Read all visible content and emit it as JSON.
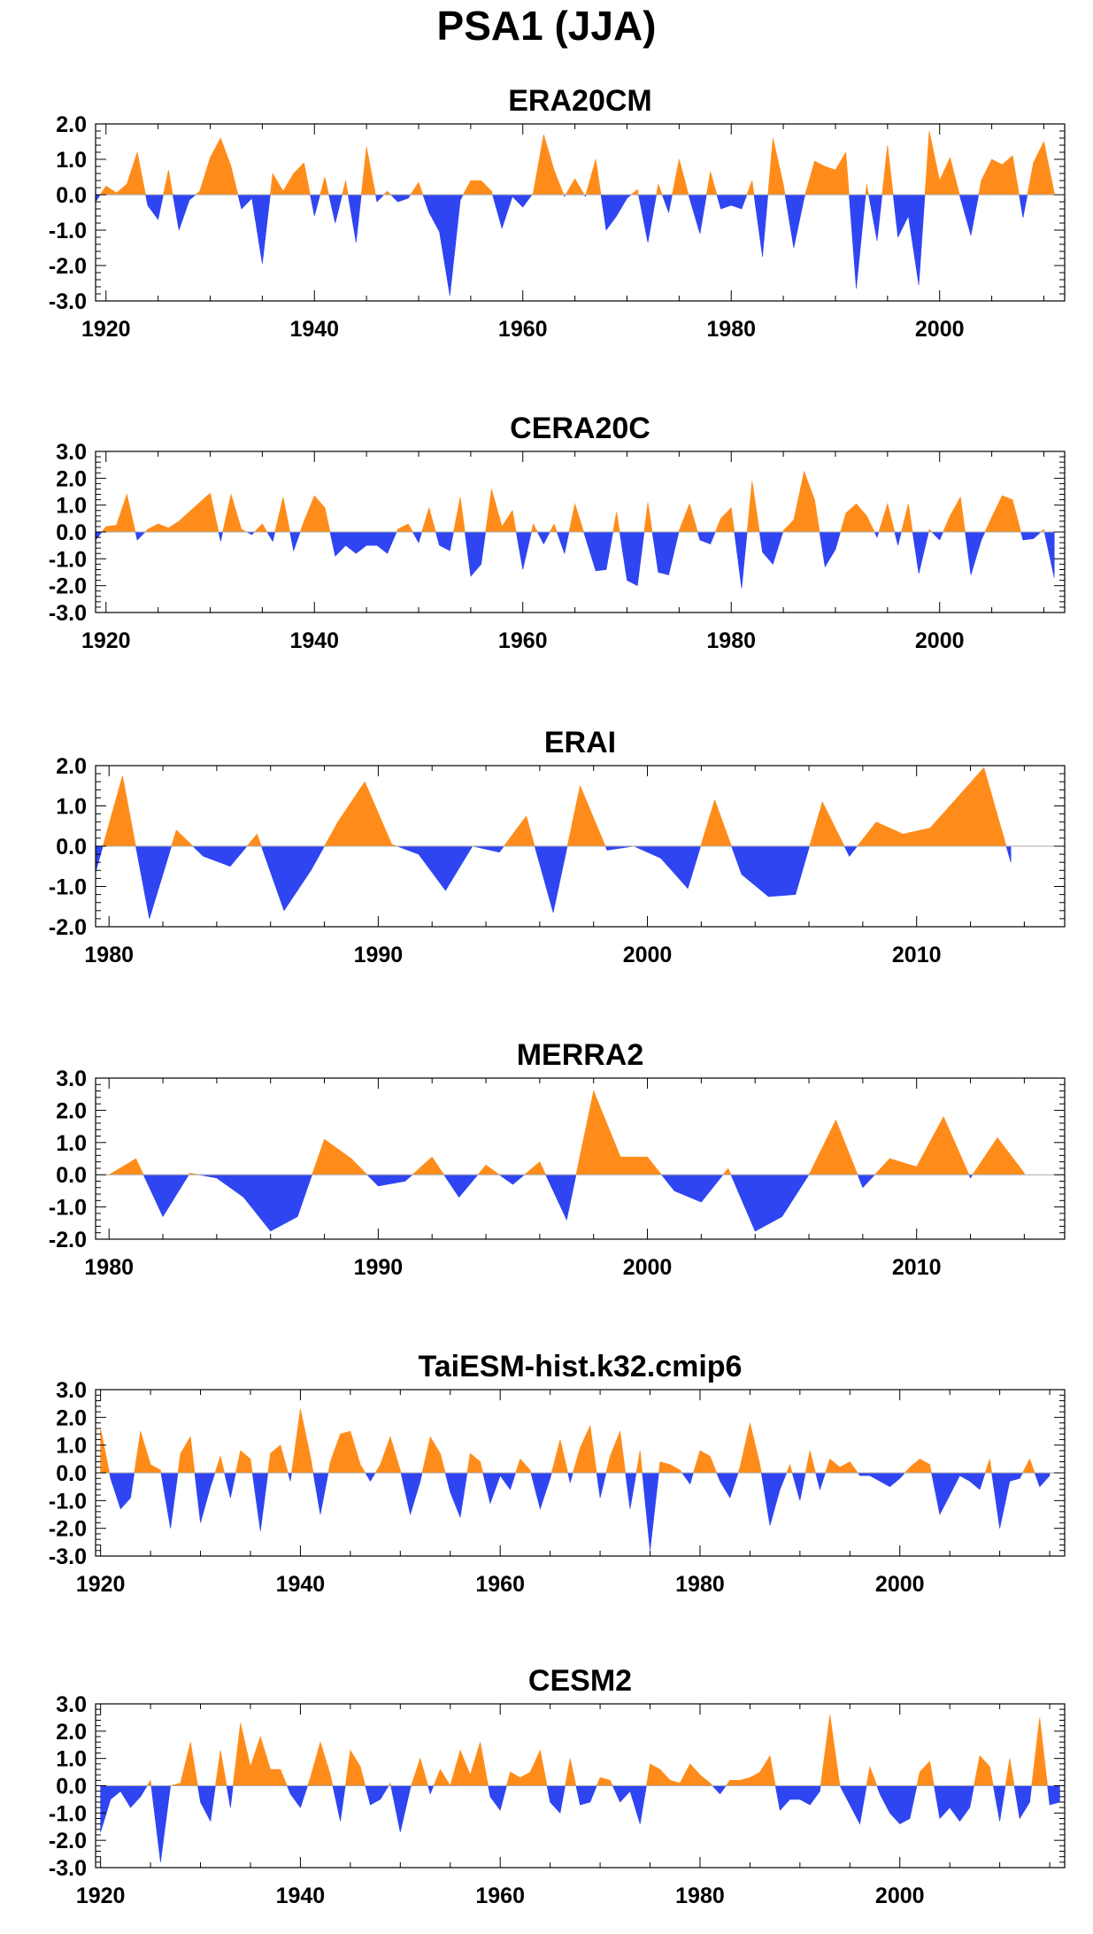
{
  "figure_title": "PSA1 (JJA)",
  "colors": {
    "positive": "#FF8C1A",
    "negative": "#2F45F2",
    "axis": "#000000",
    "zero_line": "#aaaaaa"
  },
  "chart_data": [
    {
      "type": "area",
      "title": "ERA20CM",
      "xlim": [
        1919,
        2012
      ],
      "ylim": [
        -3.0,
        2.0
      ],
      "xticks": [
        1920,
        1940,
        1960,
        1980,
        2000
      ],
      "yticks": [
        "-3.0",
        "-2.0",
        "-1.0",
        "0.0",
        "1.0",
        "2.0"
      ],
      "x_start": 1919,
      "values": [
        -0.2,
        0.25,
        0.05,
        0.3,
        1.2,
        -0.3,
        -0.7,
        0.7,
        -1.0,
        -0.15,
        0.1,
        1.05,
        1.6,
        0.8,
        -0.4,
        -0.1,
        -1.95,
        0.6,
        0.1,
        0.6,
        0.9,
        -0.6,
        0.5,
        -0.8,
        0.4,
        -1.35,
        1.35,
        -0.2,
        0.1,
        -0.2,
        -0.1,
        0.35,
        -0.5,
        -1.05,
        -2.85,
        -0.15,
        0.4,
        0.4,
        0.1,
        -0.95,
        -0.05,
        -0.35,
        0.05,
        1.7,
        0.7,
        -0.05,
        0.45,
        -0.05,
        1.0,
        -1.0,
        -0.6,
        -0.1,
        0.15,
        -1.35,
        0.3,
        -0.5,
        1.0,
        -0.1,
        -1.1,
        0.65,
        -0.4,
        -0.3,
        -0.4,
        0.4,
        -1.75,
        1.6,
        0.3,
        -1.5,
        -0.1,
        0.95,
        0.8,
        0.7,
        1.2,
        -2.65,
        0.3,
        -1.3,
        1.4,
        -1.2,
        -0.6,
        -2.55,
        1.8,
        0.4,
        1.05,
        -0.1,
        -1.15,
        0.4,
        1.0,
        0.85,
        1.1,
        -0.65,
        0.9,
        1.5,
        0.05
      ]
    },
    {
      "type": "area",
      "title": "CERA20C",
      "xlim": [
        1919,
        2012
      ],
      "ylim": [
        -3.0,
        3.0
      ],
      "xticks": [
        1920,
        1940,
        1960,
        1980,
        2000
      ],
      "yticks": [
        "-3.0",
        "-2.0",
        "-1.0",
        "0.0",
        "1.0",
        "2.0",
        "3.0"
      ],
      "x_start": 1919,
      "values": [
        -0.3,
        0.2,
        0.25,
        1.4,
        -0.3,
        0.1,
        0.3,
        0.15,
        0.4,
        0.75,
        1.1,
        1.45,
        -0.35,
        1.4,
        0.1,
        -0.1,
        0.3,
        -0.35,
        1.3,
        -0.7,
        0.4,
        1.35,
        0.9,
        -0.9,
        -0.5,
        -0.8,
        -0.5,
        -0.5,
        -0.8,
        0.1,
        0.3,
        -0.4,
        0.9,
        -0.5,
        -0.7,
        1.3,
        -1.65,
        -1.2,
        1.6,
        0.2,
        0.8,
        -1.4,
        0.3,
        -0.45,
        0.3,
        -0.8,
        1.05,
        -0.2,
        -1.45,
        -1.4,
        0.75,
        -1.8,
        -2.0,
        1.1,
        -1.5,
        -1.6,
        0.05,
        1.05,
        -0.3,
        -0.45,
        0.5,
        0.9,
        -2.1,
        1.9,
        -0.75,
        -1.2,
        0.05,
        0.45,
        2.25,
        1.2,
        -1.3,
        -0.65,
        0.7,
        1.05,
        0.6,
        -0.2,
        1.05,
        -0.5,
        1.05,
        -1.55,
        0.1,
        -0.3,
        0.6,
        1.3,
        -1.6,
        -0.3,
        0.55,
        1.35,
        1.2,
        -0.3,
        -0.25,
        0.1,
        -1.7
      ]
    },
    {
      "type": "area",
      "title": "ERAI",
      "xlim": [
        1979.5,
        2015.5
      ],
      "ylim": [
        -2.0,
        2.0
      ],
      "xticks": [
        1980,
        1990,
        2000,
        2010
      ],
      "yticks": [
        "-2.0",
        "-1.0",
        "0.0",
        "1.0",
        "2.0"
      ],
      "x_start": 1979.5,
      "values": [
        -0.65,
        1.75,
        -1.8,
        0.4,
        -0.25,
        -0.5,
        0.3,
        -1.6,
        -0.6,
        0.6,
        1.6,
        0.05,
        -0.2,
        -1.1,
        0.0,
        -0.15,
        0.75,
        -1.65,
        1.5,
        -0.1,
        0.0,
        -0.3,
        -1.05,
        1.15,
        -0.7,
        -1.25,
        -1.2,
        1.1,
        -0.25,
        0.6,
        0.3,
        0.45,
        1.2,
        1.95,
        -0.4
      ]
    },
    {
      "type": "area",
      "title": "MERRA2",
      "xlim": [
        1979.5,
        2015.5
      ],
      "ylim": [
        -2.0,
        3.0
      ],
      "xticks": [
        1980,
        1990,
        2000,
        2010
      ],
      "yticks": [
        "-2.0",
        "-1.0",
        "0.0",
        "1.0",
        "2.0",
        "3.0"
      ],
      "x_start": 1980,
      "values": [
        0.0,
        0.5,
        -1.3,
        0.05,
        -0.1,
        -0.7,
        -1.75,
        -1.3,
        1.1,
        0.5,
        -0.35,
        -0.2,
        0.55,
        -0.7,
        0.3,
        -0.3,
        0.4,
        -1.4,
        2.6,
        0.55,
        0.55,
        -0.5,
        -0.85,
        0.2,
        -1.75,
        -1.3,
        0.0,
        1.7,
        -0.4,
        0.5,
        0.25,
        1.8,
        -0.1,
        1.15,
        0.05
      ]
    },
    {
      "type": "area",
      "title": "TaiESM-hist.k32.cmip6",
      "xlim": [
        1919.5,
        2016.5
      ],
      "ylim": [
        -3.0,
        3.0
      ],
      "xticks": [
        1920,
        1940,
        1960,
        1980,
        2000
      ],
      "yticks": [
        "-3.0",
        "-2.0",
        "-1.0",
        "0.0",
        "1.0",
        "2.0",
        "3.0"
      ],
      "x_start": 1920,
      "values": [
        1.6,
        -0.2,
        -1.3,
        -0.9,
        1.5,
        0.3,
        0.1,
        -2.0,
        0.7,
        1.3,
        -1.8,
        -0.5,
        0.6,
        -0.9,
        0.8,
        0.5,
        -2.1,
        0.7,
        1.0,
        -0.3,
        2.3,
        0.6,
        -1.5,
        0.4,
        1.4,
        1.5,
        0.3,
        -0.3,
        0.3,
        1.3,
        0.1,
        -1.5,
        -0.3,
        1.3,
        0.7,
        -0.7,
        -1.6,
        0.7,
        0.4,
        -1.1,
        -0.1,
        -0.6,
        0.5,
        0.1,
        -1.3,
        -0.2,
        1.2,
        -0.35,
        0.9,
        1.7,
        -0.9,
        0.6,
        1.5,
        -1.3,
        0.8,
        -2.8,
        0.4,
        0.3,
        0.1,
        -0.4,
        0.8,
        0.6,
        -0.3,
        -0.9,
        0.2,
        1.8,
        0.3,
        -1.9,
        -0.6,
        0.3,
        -1.0,
        0.8,
        -0.6,
        0.5,
        0.2,
        0.4,
        -0.1,
        -0.1,
        -0.3,
        -0.5,
        -0.2,
        0.2,
        0.5,
        0.3,
        -1.5,
        -0.8,
        -0.1,
        -0.3,
        -0.6,
        0.5,
        -2.0,
        -0.3,
        -0.2,
        0.5,
        -0.5,
        -0.1
      ]
    },
    {
      "type": "area",
      "title": "CESM2",
      "xlim": [
        1919.5,
        2016.5
      ],
      "ylim": [
        -3.0,
        3.0
      ],
      "xticks": [
        1920,
        1940,
        1960,
        1980,
        2000
      ],
      "yticks": [
        "-3.0",
        "-2.0",
        "-1.0",
        "0.0",
        "1.0",
        "2.0",
        "3.0"
      ],
      "x_start": 1920,
      "values": [
        -1.7,
        -0.5,
        -0.2,
        -0.8,
        -0.4,
        0.2,
        -2.8,
        0.0,
        0.1,
        1.6,
        -0.6,
        -1.3,
        1.3,
        -0.8,
        2.3,
        0.7,
        1.8,
        0.6,
        0.6,
        -0.3,
        -0.8,
        0.3,
        1.6,
        0.4,
        -1.3,
        1.3,
        0.7,
        -0.7,
        -0.5,
        0.1,
        -1.7,
        -0.1,
        1.0,
        -0.3,
        0.6,
        0.0,
        1.3,
        0.4,
        1.6,
        -0.4,
        -0.9,
        0.5,
        0.3,
        0.5,
        1.3,
        -0.6,
        -1.0,
        1.0,
        -0.7,
        -0.6,
        0.3,
        0.2,
        -0.6,
        -0.2,
        -1.4,
        0.8,
        0.6,
        0.2,
        0.1,
        0.8,
        0.4,
        0.1,
        -0.3,
        0.2,
        0.2,
        0.3,
        0.5,
        1.1,
        -0.9,
        -0.5,
        -0.5,
        -0.7,
        -0.2,
        2.6,
        0.0,
        -0.7,
        -1.4,
        0.7,
        -0.3,
        -1.0,
        -1.4,
        -1.2,
        0.5,
        0.9,
        -1.2,
        -0.8,
        -1.3,
        -0.8,
        1.1,
        0.7,
        -1.3,
        1.0,
        -1.2,
        -0.6,
        2.5,
        -0.7,
        -0.6
      ]
    }
  ]
}
